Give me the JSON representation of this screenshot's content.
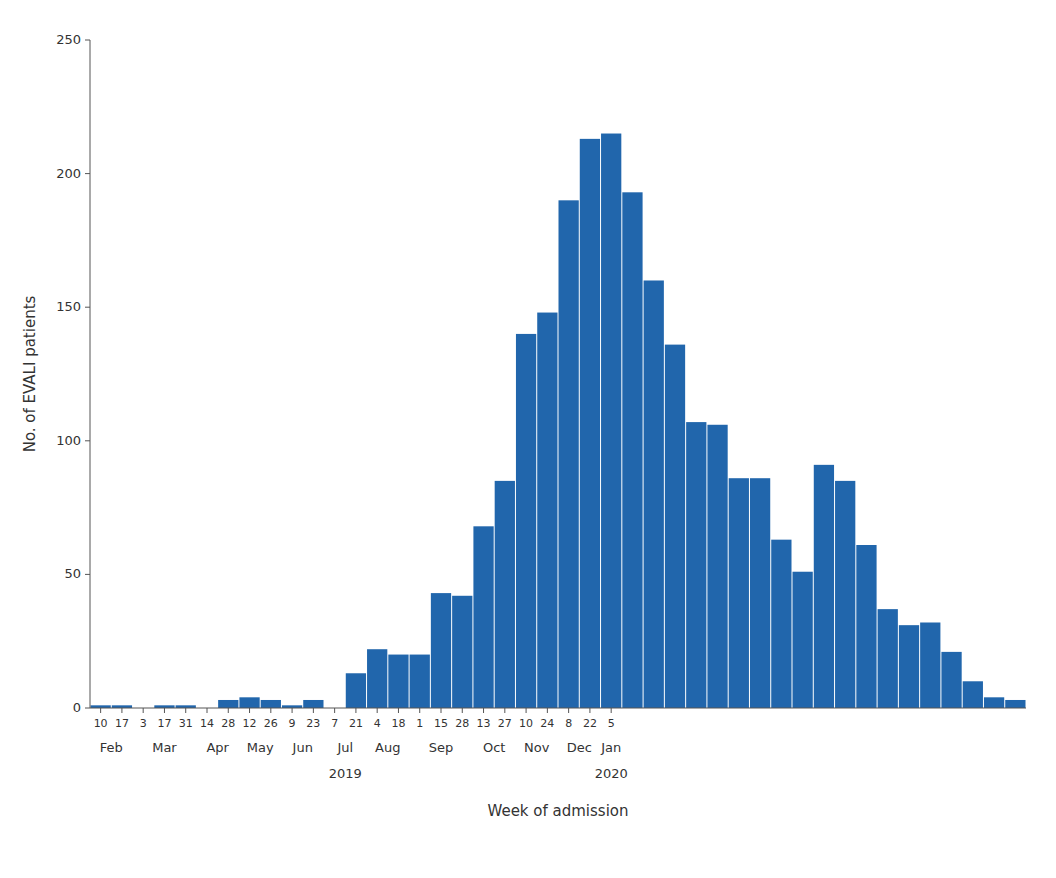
{
  "chart_data": {
    "type": "bar",
    "categories": [
      "10",
      "17",
      "3",
      "17",
      "31",
      "14",
      "28",
      "12",
      "26",
      "9",
      "23",
      "7",
      "21",
      "4",
      "18",
      "1",
      "15",
      "28",
      "13",
      "27",
      "10",
      "24",
      "8",
      "22",
      "5",
      null,
      null,
      null,
      null,
      null,
      null,
      null,
      null,
      null,
      null,
      null,
      null,
      null,
      null,
      null,
      null,
      null,
      null,
      null
    ],
    "values": [
      1,
      1,
      0,
      1,
      1,
      0,
      3,
      4,
      3,
      1,
      3,
      0,
      13,
      22,
      20,
      20,
      43,
      42,
      68,
      85,
      140,
      148,
      190,
      213,
      215,
      193,
      160,
      136,
      107,
      106,
      86,
      86,
      63,
      51,
      91,
      85,
      61,
      37,
      31,
      32,
      21,
      10,
      4,
      3
    ],
    "color": "#2166ac",
    "ylabel": "No. of EVALI patients",
    "xlabel": "Week of admission",
    "ylim": [
      0,
      250
    ],
    "yticks": [
      0,
      50,
      100,
      150,
      200,
      250
    ],
    "grid": false,
    "annotations": [
      {
        "text": "Feb",
        "x": 1
      },
      {
        "text": "Mar",
        "x": 3.5
      },
      {
        "text": "Apr",
        "x": 6
      },
      {
        "text": "May",
        "x": 8
      },
      {
        "text": "Jun",
        "x": 10
      },
      {
        "text": "Jul",
        "x": 12
      },
      {
        "text": "Aug",
        "x": 14
      },
      {
        "text": "Sep",
        "x": 16.5
      },
      {
        "text": "Oct",
        "x": 19
      },
      {
        "text": "Nov",
        "x": 21
      },
      {
        "text": "Dec",
        "x": 23
      },
      {
        "text": "Jan",
        "x": 24.5
      },
      {
        "text": "2019",
        "x": 12
      },
      {
        "text": "2020",
        "x": 24.5
      }
    ]
  }
}
